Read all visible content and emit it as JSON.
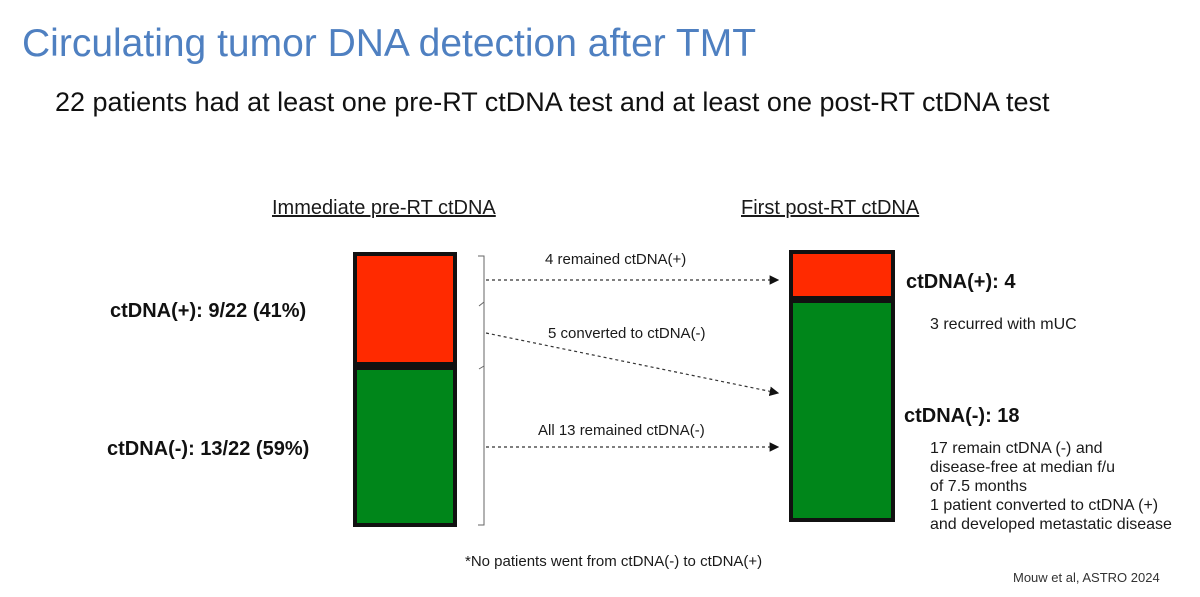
{
  "slide": {
    "title": "Circulating tumor DNA detection after TMT",
    "subtitle": "22 patients had at least one pre-RT ctDNA test and at least one post-RT ctDNA test"
  },
  "pre": {
    "heading": "Immediate pre-RT ctDNA",
    "positive_label": "ctDNA(+):  9/22 (41%)",
    "negative_label": "ctDNA(-):  13/22 (59%)",
    "positive_count": 9,
    "negative_count": 13
  },
  "post": {
    "heading": "First post-RT ctDNA",
    "positive_label": "ctDNA(+):  4",
    "negative_label": "ctDNA(-):  18",
    "positive_count": 4,
    "negative_count": 18,
    "positive_note": "3 recurred with mUC",
    "negative_note_lines": [
      "17 remain ctDNA (-) and",
      "disease-free at median f/u",
      "of 7.5 months",
      "1 patient converted to ctDNA (+)",
      "and developed metastatic disease"
    ]
  },
  "arrows": {
    "remained_positive": "4 remained ctDNA(+)",
    "converted_negative": "5 converted to ctDNA(-)",
    "remained_negative": "All 13 remained ctDNA(-)"
  },
  "footnote": "*No patients went from ctDNA(-) to ctDNA(+)",
  "citation": "Mouw et al, ASTRO 2024",
  "colors": {
    "title": "#4f80c1",
    "positive": "#ff2a00",
    "negative": "#00861a",
    "outline": "#111111"
  }
}
